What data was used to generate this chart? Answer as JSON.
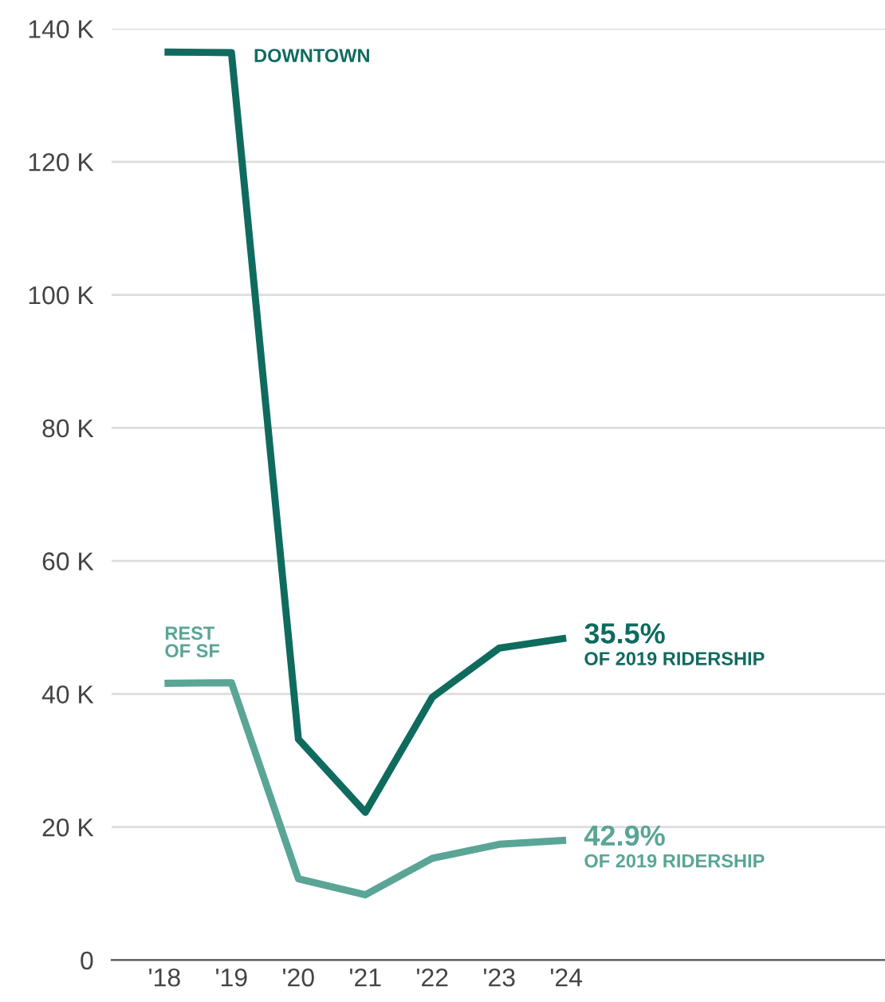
{
  "chart_data": {
    "type": "line",
    "categories": [
      "'18",
      "'19",
      "'20",
      "'21",
      "'22",
      "'23",
      "'24"
    ],
    "series": [
      {
        "name": "DOWNTOWN",
        "color": "#0f6b5e",
        "values": [
          136500,
          136400,
          33200,
          22200,
          39500,
          46900,
          48400
        ]
      },
      {
        "name": "REST\nOF SF",
        "color": "#5aa596",
        "values": [
          41600,
          41700,
          12200,
          9800,
          15300,
          17400,
          18000
        ]
      }
    ],
    "annotations": [
      {
        "text": "35.5%\nOF 2019 RIDERSHIP",
        "x": "'24",
        "y": 48400
      },
      {
        "text": "42.9%\nOF 2019 RIDERSHIP",
        "x": "'24",
        "y": 18000
      }
    ],
    "ylim": [
      0,
      140000
    ],
    "yticks": [
      {
        "value": 0,
        "label": "0"
      },
      {
        "value": 20000,
        "label": "20 K"
      },
      {
        "value": 40000,
        "label": "40 K"
      },
      {
        "value": 60000,
        "label": "60 K"
      },
      {
        "value": 80000,
        "label": "80 K"
      },
      {
        "value": 100000,
        "label": "100 K"
      },
      {
        "value": 120000,
        "label": "120 K"
      },
      {
        "value": 140000,
        "label": "140 K"
      }
    ],
    "grid": "y",
    "legend": false,
    "marker": "none",
    "line_style": "solid"
  }
}
